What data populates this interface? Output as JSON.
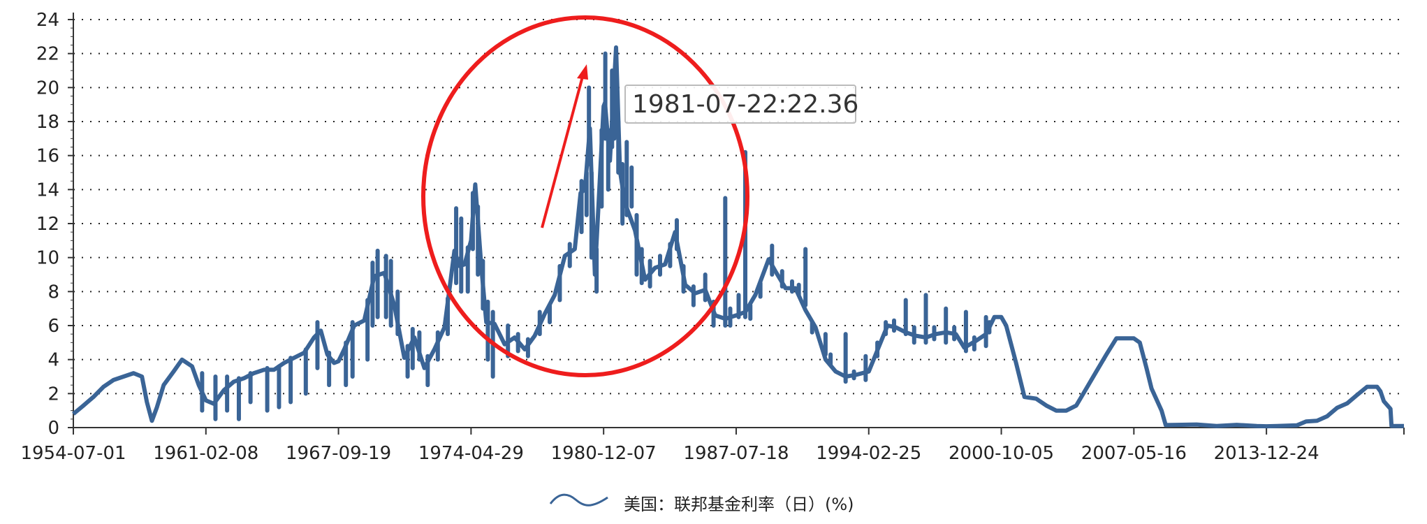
{
  "colors": {
    "series": "#3a6496",
    "annotation": "#ee1d1d",
    "grid": "#222222",
    "tooltip_border": "#bbbbbb"
  },
  "tooltip": {
    "text": "1981-07-22:22.36"
  },
  "chart_data": {
    "type": "line",
    "title": "",
    "xlabel": "",
    "ylabel": "",
    "x_ticks": [
      "1954-07-01",
      "1961-02-08",
      "1967-09-19",
      "1974-04-29",
      "1980-12-07",
      "1987-07-18",
      "1994-02-25",
      "2000-10-05",
      "2007-05-16",
      "2013-12-24"
    ],
    "y_ticks": [
      "0",
      "2",
      "4",
      "6",
      "8",
      "10",
      "12",
      "14",
      "16",
      "18",
      "20",
      "22",
      "24"
    ],
    "ylim": [
      0,
      24
    ],
    "xlim": [
      "1954-07-01",
      "2020-11-01"
    ],
    "grid": true,
    "legend_position": "bottom-center",
    "series": [
      {
        "name": "美国：联邦基金利率（日）(%)",
        "points": [
          [
            "1954-07-01",
            0.8
          ],
          [
            "1955-01-01",
            1.3
          ],
          [
            "1955-07-01",
            1.8
          ],
          [
            "1956-01-01",
            2.4
          ],
          [
            "1956-07-01",
            2.8
          ],
          [
            "1957-01-01",
            3.0
          ],
          [
            "1957-07-01",
            3.2
          ],
          [
            "1957-12-01",
            3.0
          ],
          [
            "1958-03-01",
            1.5
          ],
          [
            "1958-06-01",
            0.4
          ],
          [
            "1958-09-01",
            1.2
          ],
          [
            "1959-01-01",
            2.5
          ],
          [
            "1959-07-01",
            3.3
          ],
          [
            "1959-12-01",
            4.0
          ],
          [
            "1960-06-01",
            3.6
          ],
          [
            "1960-10-01",
            2.5
          ],
          [
            "1961-02-08",
            1.6
          ],
          [
            "1961-07-01",
            1.4
          ],
          [
            "1962-01-01",
            2.2
          ],
          [
            "1962-07-01",
            2.7
          ],
          [
            "1963-01-01",
            2.9
          ],
          [
            "1963-07-01",
            3.2
          ],
          [
            "1964-01-01",
            3.4
          ],
          [
            "1964-07-01",
            3.4
          ],
          [
            "1965-01-01",
            3.8
          ],
          [
            "1965-07-01",
            4.1
          ],
          [
            "1966-01-01",
            4.4
          ],
          [
            "1966-07-01",
            5.3
          ],
          [
            "1966-11-01",
            5.7
          ],
          [
            "1967-03-01",
            4.3
          ],
          [
            "1967-07-01",
            3.8
          ],
          [
            "1967-09-19",
            3.9
          ],
          [
            "1968-01-01",
            4.6
          ],
          [
            "1968-07-01",
            6.0
          ],
          [
            "1969-01-01",
            6.3
          ],
          [
            "1969-07-01",
            8.9
          ],
          [
            "1970-01-01",
            9.1
          ],
          [
            "1970-07-01",
            7.2
          ],
          [
            "1971-01-01",
            4.1
          ],
          [
            "1971-07-01",
            5.3
          ],
          [
            "1972-01-01",
            3.5
          ],
          [
            "1972-07-01",
            4.6
          ],
          [
            "1973-01-01",
            5.9
          ],
          [
            "1973-07-01",
            10.4
          ],
          [
            "1973-10-01",
            9.5
          ],
          [
            "1974-01-01",
            9.6
          ],
          [
            "1974-04-29",
            11.0
          ],
          [
            "1974-07-15",
            14.3
          ],
          [
            "1974-11-01",
            9.5
          ],
          [
            "1975-02-01",
            6.2
          ],
          [
            "1975-07-01",
            6.1
          ],
          [
            "1976-01-01",
            4.9
          ],
          [
            "1976-07-01",
            5.3
          ],
          [
            "1977-01-01",
            4.6
          ],
          [
            "1977-07-01",
            5.4
          ],
          [
            "1978-01-01",
            6.7
          ],
          [
            "1978-07-01",
            7.8
          ],
          [
            "1979-01-01",
            10.1
          ],
          [
            "1979-07-01",
            10.5
          ],
          [
            "1979-10-15",
            13.8
          ],
          [
            "1980-01-01",
            14.0
          ],
          [
            "1980-04-01",
            17.6
          ],
          [
            "1980-07-01",
            9.0
          ],
          [
            "1980-12-07",
            18.9
          ],
          [
            "1981-01-01",
            19.1
          ],
          [
            "1981-04-01",
            15.7
          ],
          [
            "1981-07-22",
            22.36
          ],
          [
            "1981-10-01",
            15.1
          ],
          [
            "1982-01-01",
            13.2
          ],
          [
            "1982-07-01",
            11.6
          ],
          [
            "1983-01-01",
            8.7
          ],
          [
            "1983-07-01",
            9.4
          ],
          [
            "1984-01-01",
            9.6
          ],
          [
            "1984-07-01",
            11.5
          ],
          [
            "1985-01-01",
            8.4
          ],
          [
            "1985-07-01",
            7.9
          ],
          [
            "1986-01-01",
            8.1
          ],
          [
            "1986-07-01",
            6.6
          ],
          [
            "1987-01-01",
            6.4
          ],
          [
            "1987-07-18",
            6.6
          ],
          [
            "1988-01-01",
            6.8
          ],
          [
            "1988-07-01",
            7.8
          ],
          [
            "1989-03-01",
            9.9
          ],
          [
            "1989-07-01",
            9.2
          ],
          [
            "1990-01-01",
            8.2
          ],
          [
            "1990-07-01",
            8.2
          ],
          [
            "1991-01-01",
            6.9
          ],
          [
            "1991-07-01",
            5.9
          ],
          [
            "1992-01-01",
            4.0
          ],
          [
            "1992-07-01",
            3.3
          ],
          [
            "1993-01-01",
            3.0
          ],
          [
            "1993-07-01",
            3.1
          ],
          [
            "1994-02-25",
            3.3
          ],
          [
            "1994-07-01",
            4.3
          ],
          [
            "1995-02-01",
            6.0
          ],
          [
            "1995-07-01",
            5.9
          ],
          [
            "1996-01-01",
            5.6
          ],
          [
            "1996-07-01",
            5.4
          ],
          [
            "1997-01-01",
            5.3
          ],
          [
            "1997-07-01",
            5.5
          ],
          [
            "1998-01-01",
            5.6
          ],
          [
            "1998-07-01",
            5.5
          ],
          [
            "1998-12-01",
            4.7
          ],
          [
            "1999-07-01",
            5.1
          ],
          [
            "2000-01-01",
            5.5
          ],
          [
            "2000-06-01",
            6.5
          ],
          [
            "2000-10-05",
            6.5
          ],
          [
            "2001-01-01",
            6.0
          ],
          [
            "2001-07-01",
            3.8
          ],
          [
            "2001-12-01",
            1.8
          ],
          [
            "2002-07-01",
            1.7
          ],
          [
            "2003-01-01",
            1.3
          ],
          [
            "2003-07-01",
            1.0
          ],
          [
            "2004-01-01",
            1.0
          ],
          [
            "2004-07-01",
            1.3
          ],
          [
            "2005-01-01",
            2.3
          ],
          [
            "2005-07-01",
            3.3
          ],
          [
            "2006-01-01",
            4.3
          ],
          [
            "2006-07-01",
            5.25
          ],
          [
            "2007-01-01",
            5.25
          ],
          [
            "2007-05-16",
            5.25
          ],
          [
            "2007-09-01",
            5.0
          ],
          [
            "2008-01-01",
            3.5
          ],
          [
            "2008-04-01",
            2.3
          ],
          [
            "2008-10-01",
            1.0
          ],
          [
            "2008-12-16",
            0.15
          ],
          [
            "2009-07-01",
            0.16
          ],
          [
            "2010-07-01",
            0.18
          ],
          [
            "2011-07-01",
            0.09
          ],
          [
            "2012-07-01",
            0.16
          ],
          [
            "2013-07-01",
            0.09
          ],
          [
            "2013-12-24",
            0.08
          ],
          [
            "2014-07-01",
            0.09
          ],
          [
            "2015-07-01",
            0.13
          ],
          [
            "2015-12-16",
            0.36
          ],
          [
            "2016-07-01",
            0.4
          ],
          [
            "2017-01-01",
            0.66
          ],
          [
            "2017-07-01",
            1.16
          ],
          [
            "2018-01-01",
            1.42
          ],
          [
            "2018-07-01",
            1.92
          ],
          [
            "2019-01-01",
            2.4
          ],
          [
            "2019-07-01",
            2.4
          ],
          [
            "2019-09-01",
            2.13
          ],
          [
            "2019-11-01",
            1.55
          ],
          [
            "2020-03-01",
            1.1
          ],
          [
            "2020-03-20",
            0.1
          ],
          [
            "2020-07-01",
            0.09
          ],
          [
            "2020-11-01",
            0.09
          ]
        ],
        "spikes": [
          [
            "1960-12-01",
            1.0,
            3.2
          ],
          [
            "1961-08-01",
            0.5,
            3.0
          ],
          [
            "1962-03-01",
            1.0,
            3.0
          ],
          [
            "1962-10-01",
            0.5,
            2.9
          ],
          [
            "1963-05-01",
            1.5,
            3.2
          ],
          [
            "1964-03-01",
            1.0,
            3.5
          ],
          [
            "1964-10-01",
            1.2,
            3.6
          ],
          [
            "1965-05-01",
            1.5,
            4.1
          ],
          [
            "1966-02-01",
            2.0,
            4.6
          ],
          [
            "1966-09-01",
            3.5,
            6.2
          ],
          [
            "1967-04-01",
            2.5,
            4.4
          ],
          [
            "1968-02-01",
            2.5,
            5.0
          ],
          [
            "1968-06-01",
            3.0,
            6.2
          ],
          [
            "1969-03-01",
            4.0,
            7.5
          ],
          [
            "1969-06-01",
            6.0,
            9.7
          ],
          [
            "1969-09-01",
            6.5,
            10.4
          ],
          [
            "1970-02-01",
            6.5,
            10.1
          ],
          [
            "1970-05-01",
            6.0,
            9.8
          ],
          [
            "1970-09-01",
            5.5,
            8.0
          ],
          [
            "1971-03-01",
            3.0,
            4.8
          ],
          [
            "1971-06-01",
            3.5,
            5.8
          ],
          [
            "1971-10-01",
            4.0,
            5.6
          ],
          [
            "1972-03-01",
            2.5,
            4.2
          ],
          [
            "1972-09-01",
            4.0,
            5.6
          ],
          [
            "1973-03-01",
            5.5,
            7.6
          ],
          [
            "1973-08-01",
            8.5,
            12.9
          ],
          [
            "1973-11-01",
            8.0,
            12.3
          ],
          [
            "1974-03-01",
            8.0,
            10.6
          ],
          [
            "1974-06-01",
            10.5,
            13.8
          ],
          [
            "1974-09-01",
            9.0,
            13.0
          ],
          [
            "1974-12-01",
            7.0,
            9.8
          ],
          [
            "1975-03-01",
            4.0,
            7.4
          ],
          [
            "1975-06-01",
            3.0,
            6.8
          ],
          [
            "1976-03-01",
            4.2,
            6.0
          ],
          [
            "1976-09-01",
            4.5,
            5.5
          ],
          [
            "1977-03-01",
            4.2,
            5.2
          ],
          [
            "1977-10-01",
            5.5,
            6.8
          ],
          [
            "1978-04-01",
            6.2,
            7.2
          ],
          [
            "1978-10-01",
            7.5,
            9.5
          ],
          [
            "1979-04-01",
            9.5,
            10.8
          ],
          [
            "1979-11-01",
            11.5,
            14.5
          ],
          [
            "1980-02-01",
            12.5,
            15.0
          ],
          [
            "1980-03-15",
            15.5,
            20.0
          ],
          [
            "1980-05-01",
            10.0,
            15.0
          ],
          [
            "1980-08-01",
            8.0,
            10.5
          ],
          [
            "1980-11-01",
            13.0,
            17.5
          ],
          [
            "1981-01-07",
            17.0,
            22.0
          ],
          [
            "1981-03-01",
            14.0,
            17.5
          ],
          [
            "1981-05-10",
            16.5,
            21.0
          ],
          [
            "1981-06-20",
            17.0,
            20.5
          ],
          [
            "1981-09-01",
            15.0,
            18.0
          ],
          [
            "1981-11-15",
            12.0,
            15.5
          ],
          [
            "1982-02-01",
            12.5,
            16.8
          ],
          [
            "1982-05-01",
            13.0,
            15.3
          ],
          [
            "1982-08-01",
            9.0,
            12.5
          ],
          [
            "1982-11-01",
            8.5,
            10.5
          ],
          [
            "1983-04-01",
            8.3,
            9.8
          ],
          [
            "1983-10-01",
            9.0,
            10.1
          ],
          [
            "1984-04-01",
            9.5,
            10.8
          ],
          [
            "1984-08-01",
            10.5,
            12.2
          ],
          [
            "1984-12-01",
            8.0,
            9.5
          ],
          [
            "1985-06-01",
            7.2,
            8.3
          ],
          [
            "1986-01-01",
            7.5,
            9.0
          ],
          [
            "1986-06-01",
            6.0,
            7.4
          ],
          [
            "1986-12-31",
            6.0,
            13.5
          ],
          [
            "1987-04-01",
            6.0,
            7.0
          ],
          [
            "1987-09-01",
            6.5,
            7.8
          ],
          [
            "1987-12-31",
            6.5,
            16.2
          ],
          [
            "1988-04-01",
            6.4,
            7.2
          ],
          [
            "1988-10-01",
            7.7,
            8.5
          ],
          [
            "1989-05-01",
            9.0,
            10.7
          ],
          [
            "1989-11-01",
            8.3,
            9.2
          ],
          [
            "1990-05-01",
            8.0,
            8.6
          ],
          [
            "1990-09-01",
            7.8,
            8.4
          ],
          [
            "1990-12-31",
            7.2,
            10.5
          ],
          [
            "1991-05-01",
            5.6,
            6.2
          ],
          [
            "1991-12-31",
            4.3,
            5.5
          ],
          [
            "1992-04-01",
            3.7,
            4.3
          ],
          [
            "1992-12-31",
            2.7,
            5.5
          ],
          [
            "1993-06-01",
            2.9,
            3.3
          ],
          [
            "1993-12-31",
            2.8,
            4.2
          ],
          [
            "1994-08-01",
            4.2,
            5.0
          ],
          [
            "1995-01-01",
            5.5,
            6.2
          ],
          [
            "1995-06-01",
            5.7,
            6.3
          ],
          [
            "1995-12-31",
            5.5,
            7.5
          ],
          [
            "1996-06-01",
            5.0,
            5.9
          ],
          [
            "1996-12-31",
            5.0,
            7.8
          ],
          [
            "1997-06-01",
            5.2,
            5.9
          ],
          [
            "1997-12-31",
            5.0,
            7.0
          ],
          [
            "1998-06-01",
            5.2,
            5.9
          ],
          [
            "1998-12-31",
            4.5,
            6.8
          ],
          [
            "1999-06-01",
            4.6,
            5.3
          ],
          [
            "1999-12-31",
            4.8,
            6.5
          ],
          [
            "2000-03-01",
            5.6,
            6.2
          ]
        ]
      }
    ]
  }
}
